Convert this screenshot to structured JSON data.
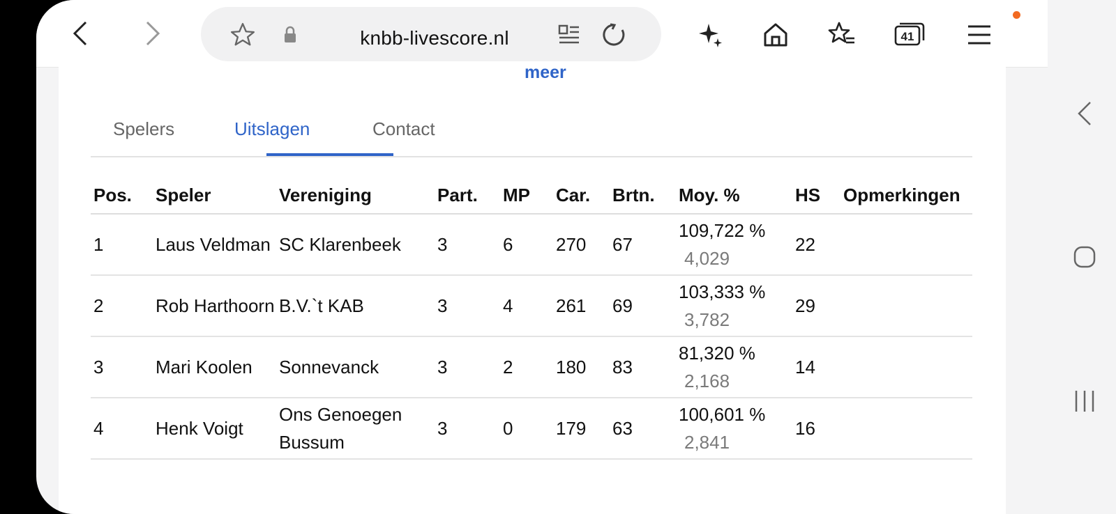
{
  "browser": {
    "url": "knbb-livescore.nl"
  },
  "page": {
    "link_more": "meer",
    "tabs": [
      {
        "label": "Spelers",
        "active": false
      },
      {
        "label": "Uitslagen",
        "active": true
      },
      {
        "label": "Contact",
        "active": false
      }
    ],
    "table": {
      "headers": [
        "Pos.",
        "Speler",
        "Vereniging",
        "Part.",
        "MP",
        "Car.",
        "Brtn.",
        "Moy. %",
        "HS",
        "Opmerkingen"
      ],
      "rows": [
        {
          "pos": "1",
          "speler": "Laus Veldman",
          "vereniging": "SC Klarenbeek",
          "part": "3",
          "mp": "6",
          "car": "270",
          "brtn": "67",
          "moy_pct": "109,722 %",
          "moy": "4,029",
          "hs": "22",
          "opmerkingen": ""
        },
        {
          "pos": "2",
          "speler": "Rob Harthoorn",
          "vereniging": "B.V.`t KAB",
          "part": "3",
          "mp": "4",
          "car": "261",
          "brtn": "69",
          "moy_pct": "103,333 %",
          "moy": "3,782",
          "hs": "29",
          "opmerkingen": ""
        },
        {
          "pos": "3",
          "speler": "Mari Koolen",
          "vereniging": "Sonnevanck",
          "part": "3",
          "mp": "2",
          "car": "180",
          "brtn": "83",
          "moy_pct": "81,320 %",
          "moy": "2,168",
          "hs": "14",
          "opmerkingen": ""
        },
        {
          "pos": "4",
          "speler": "Henk Voigt",
          "vereniging": "Ons Genoegen Bussum",
          "part": "3",
          "mp": "0",
          "car": "179",
          "brtn": "63",
          "moy_pct": "100,601 %",
          "moy": "2,841",
          "hs": "16",
          "opmerkingen": ""
        }
      ]
    }
  },
  "colors": {
    "accent": "#2f64c8",
    "notification": "#f26a21"
  },
  "icons": {
    "tabs_count": "41"
  }
}
